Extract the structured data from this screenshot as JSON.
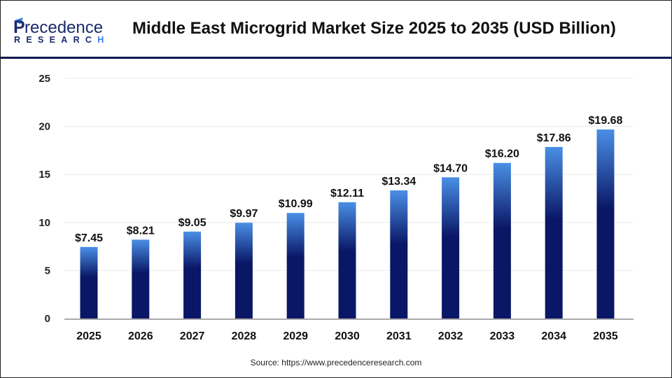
{
  "header": {
    "logo_text": "Precedence RESEARCH",
    "title": "Middle East Microgrid Market Size 2025 to 2035 (USD Billion)"
  },
  "source": "Source: https://www.precedenceresearch.com",
  "colors": {
    "bar_top": "#4a8fe6",
    "bar_bottom": "#0a1766",
    "header_rule": "#0b1a4e"
  },
  "chart_data": {
    "type": "bar",
    "title": "Middle East Microgrid Market Size 2025 to 2035 (USD Billion)",
    "categories": [
      "2025",
      "2026",
      "2027",
      "2028",
      "2029",
      "2030",
      "2031",
      "2032",
      "2033",
      "2034",
      "2035"
    ],
    "values": [
      7.45,
      8.21,
      9.05,
      9.97,
      10.99,
      12.11,
      13.34,
      14.7,
      16.2,
      17.86,
      19.68
    ],
    "data_labels": [
      "$7.45",
      "$8.21",
      "$9.05",
      "$9.97",
      "$10.99",
      "$12.11",
      "$13.34",
      "$14.70",
      "$16.20",
      "$17.86",
      "$19.68"
    ],
    "yticks": [
      0,
      5,
      10,
      15,
      20,
      25
    ],
    "ylim": [
      0,
      25
    ],
    "grid": true,
    "xlabel": "",
    "ylabel": ""
  }
}
